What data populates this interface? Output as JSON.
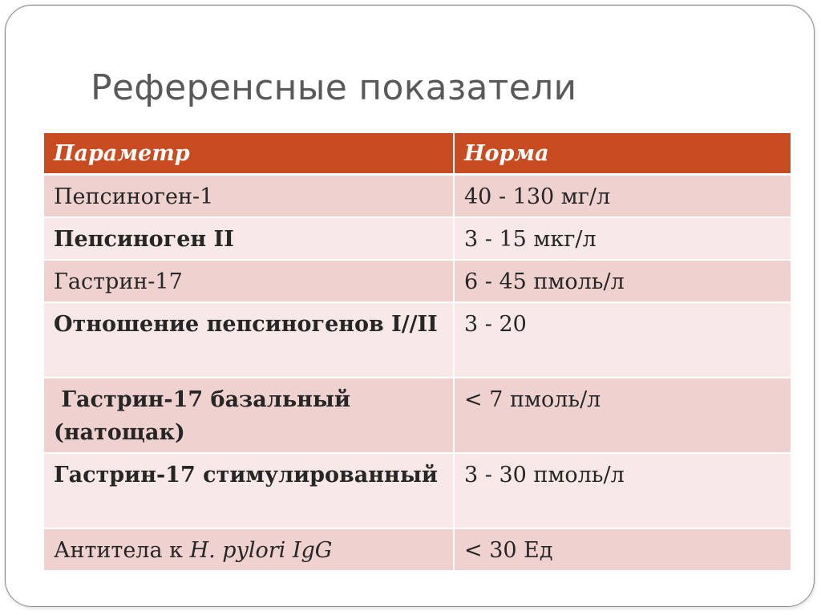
{
  "slide": {
    "title": "Референсные показатели"
  },
  "table": {
    "headers": [
      "Параметр",
      "Норма"
    ],
    "rows": [
      {
        "param": "Пепсиноген-1",
        "norm": "40 - 130 мг/л"
      },
      {
        "param": "Пепсиноген II",
        "norm": "3 - 15 мкг/л"
      },
      {
        "param": "Гастрин-17",
        "norm": "6 - 45 пмоль/л"
      },
      {
        "param": "Отношение пепсиногенов I//II",
        "norm": "3 - 20"
      },
      {
        "param": " Гастрин-17 базальный (натощак)",
        "norm": "< 7 пмоль/л"
      },
      {
        "param": "Гастрин-17 стимулированный",
        "norm": "3 - 30 пмоль/л"
      },
      {
        "param_prefix": "Антитела к ",
        "param_italic": "H. pylori IgG",
        "norm": "< 30 Ед"
      }
    ]
  },
  "colors": {
    "header_bg": "#c84b22",
    "row_dark": "#efd1cf",
    "row_light": "#f8e9e8",
    "title_text": "#595959"
  }
}
